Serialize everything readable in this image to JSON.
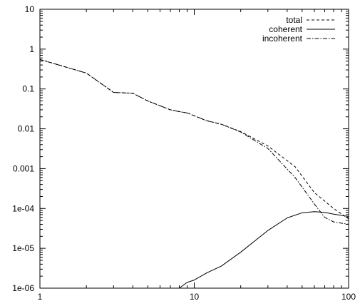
{
  "chart_data": {
    "type": "line",
    "xscale": "log",
    "yscale": "log",
    "xlim": [
      1,
      100
    ],
    "ylim": [
      1e-06,
      10
    ],
    "grid": false,
    "legend_position": "top-right",
    "x_ticks": [
      {
        "value": 1,
        "label": "1"
      },
      {
        "value": 10,
        "label": "10"
      },
      {
        "value": 100,
        "label": "100"
      }
    ],
    "y_ticks": [
      {
        "value": 1e-06,
        "label": "1e-06"
      },
      {
        "value": 1e-05,
        "label": "1e-05"
      },
      {
        "value": 0.0001,
        "label": "1e-04"
      },
      {
        "value": 0.001,
        "label": "0.001"
      },
      {
        "value": 0.01,
        "label": "0.01"
      },
      {
        "value": 0.1,
        "label": "0.1"
      },
      {
        "value": 1,
        "label": "1"
      },
      {
        "value": 10,
        "label": "10"
      }
    ],
    "series": [
      {
        "name": "total",
        "style": "dashed",
        "color": "#000000",
        "x": [
          1,
          2,
          3,
          4,
          5,
          7,
          8,
          9,
          12,
          15,
          20,
          30,
          45,
          60,
          80,
          100
        ],
        "y": [
          0.55,
          0.25,
          0.082,
          0.078,
          0.05,
          0.03,
          0.027,
          0.025,
          0.016,
          0.013,
          0.0085,
          0.0037,
          0.00112,
          0.00025,
          0.0001,
          5.5e-05
        ]
      },
      {
        "name": "coherent",
        "style": "solid",
        "color": "#000000",
        "x": [
          8,
          9,
          10,
          12,
          15,
          20,
          30,
          40,
          50,
          60,
          70,
          80,
          100
        ],
        "y": [
          1e-06,
          1.4e-06,
          1.6e-06,
          2.4e-06,
          3.6e-06,
          8e-06,
          2.8e-05,
          5.8e-05,
          7.8e-05,
          8.3e-05,
          8e-05,
          7.2e-05,
          6.3e-05
        ]
      },
      {
        "name": "incoherent",
        "style": "dashdot",
        "color": "#000000",
        "x": [
          1,
          2,
          3,
          4,
          5,
          7,
          8,
          9,
          12,
          15,
          20,
          30,
          45,
          60,
          70,
          80,
          100
        ],
        "y": [
          0.55,
          0.25,
          0.082,
          0.078,
          0.05,
          0.03,
          0.027,
          0.025,
          0.016,
          0.013,
          0.0083,
          0.0032,
          0.0006,
          0.00013,
          6e-05,
          4.6e-05,
          4e-05
        ]
      }
    ]
  }
}
